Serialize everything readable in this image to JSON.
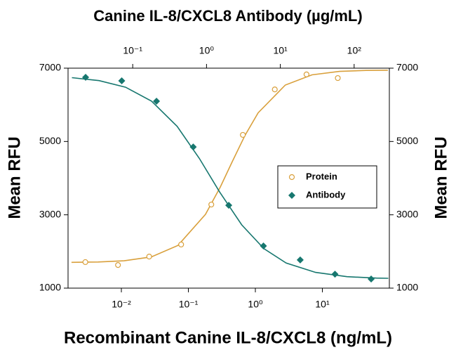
{
  "chart_data": {
    "type": "scatter",
    "title": "Canine IL-8/CXCL8 Antibody (µg/mL)",
    "x_label": "Recombinant Canine IL-8/CXCL8 (ng/mL)",
    "y_label": "Mean RFU",
    "y2_label": "Mean RFU",
    "log_x": true,
    "xlim": [
      0.0016,
      100
    ],
    "xticks": [
      {
        "value": 0.01,
        "label": "10⁻²"
      },
      {
        "value": 0.1,
        "label": "10⁻¹"
      },
      {
        "value": 1,
        "label": "10⁰"
      },
      {
        "value": 10,
        "label": "10¹"
      }
    ],
    "x2lim": [
      0.0133,
      300
    ],
    "x2ticks": [
      {
        "value": 0.1,
        "label": "10⁻¹"
      },
      {
        "value": 1,
        "label": "10⁰"
      },
      {
        "value": 10,
        "label": "10¹"
      },
      {
        "value": 100,
        "label": "10²"
      }
    ],
    "ylim": [
      1000,
      7000
    ],
    "yticks": [
      1000,
      3000,
      5000,
      7000
    ],
    "y2lim": [
      1000,
      7000
    ],
    "y2ticks": [
      1000,
      3000,
      5000,
      7000
    ],
    "legend": "right",
    "series": [
      {
        "name": "Protein",
        "color": "#d9a03c",
        "marker": "circle",
        "xaxis": "x",
        "x": [
          0.0029,
          0.0089,
          0.026,
          0.078,
          0.22,
          0.65,
          1.95,
          5.8,
          17
        ],
        "values": [
          1710,
          1630,
          1860,
          2190,
          3280,
          5180,
          6420,
          6830,
          6730
        ],
        "curve": {
          "x": [
            0.0018,
            0.0045,
            0.011,
            0.028,
            0.07,
            0.18,
            0.3,
            0.45,
            0.7,
            1.1,
            2.8,
            7,
            18,
            45,
            95
          ],
          "values": [
            1704,
            1714,
            1746,
            1851,
            2165,
            3012,
            3760,
            4442,
            5165,
            5782,
            6539,
            6817,
            6911,
            6938,
            6945
          ]
        }
      },
      {
        "name": "Antibody",
        "color": "#17776f",
        "marker": "diamond",
        "xaxis": "x2",
        "x": [
          0.023,
          0.071,
          0.21,
          0.66,
          2.0,
          5.9,
          18.6,
          55,
          170
        ],
        "values": [
          6750,
          6655,
          6100,
          4850,
          3260,
          2150,
          1770,
          1380,
          1250
        ],
        "curve": {
          "x": [
            0.015,
            0.035,
            0.08,
            0.18,
            0.4,
            0.8,
            1.5,
            3,
            6,
            12,
            30,
            80,
            200,
            290
          ],
          "values": [
            6742,
            6661,
            6481,
            6101,
            5413,
            4536,
            3628,
            2726,
            2076,
            1684,
            1429,
            1313,
            1274,
            1268
          ]
        }
      }
    ]
  }
}
